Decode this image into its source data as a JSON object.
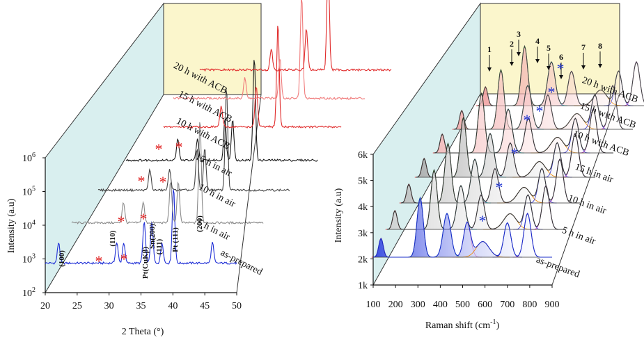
{
  "colors": {
    "back_wall": "#d9efef",
    "inset_bg": "#fbf6cc",
    "as_prepared": "#1f2fd6",
    "air": "#555555",
    "acb": "#e02a2a"
  },
  "chart_data": [
    {
      "type": "line",
      "layout": "3d-waterfall",
      "xlabel": "2 Theta (°)",
      "ylabel": "Intensity (a.u)",
      "y_scale": "log",
      "x_ticks": [
        "20",
        "25",
        "30",
        "35",
        "40",
        "45",
        "50"
      ],
      "y_ticks": [
        "10",
        "10",
        "10",
        "10",
        "10"
      ],
      "y_tick_exponents": [
        "2",
        "3",
        "4",
        "5",
        "6"
      ],
      "xlim": [
        20,
        50
      ],
      "series": [
        {
          "name": "as-prepared",
          "peaks_2theta": [
            22.1,
            31.2,
            32.3,
            35.5,
            36.7,
            38.3,
            40.1,
            46.2
          ]
        },
        {
          "name": "5 h in air",
          "peaks_2theta": [
            28.1,
            31.2,
            35.5,
            36.7,
            40.1
          ]
        },
        {
          "name": "10 h in air",
          "peaks_2theta": [
            28.1,
            31.2,
            35.5,
            36.7,
            40.1
          ]
        },
        {
          "name": "15 h in air",
          "peaks_2theta": [
            28.1,
            31.2,
            35.5,
            36.7,
            40.1
          ]
        },
        {
          "name": "10 h with ACB",
          "peaks_2theta": [
            31.2,
            36.7,
            40.1
          ]
        },
        {
          "name": "15 h with ACB",
          "peaks_2theta": [
            31.2,
            36.7,
            40.1
          ]
        },
        {
          "name": "20 h with ACB",
          "peaks_2theta": [
            31.2,
            36.7,
            40.1
          ]
        }
      ],
      "annotations": [
        "(100)",
        "(110)",
        "Sn(200)",
        "Pt(CuKβ)",
        "(111)",
        "Pt (111)",
        "(200)"
      ]
    },
    {
      "type": "line",
      "layout": "3d-waterfall",
      "xlabel": "Raman shift (cm",
      "xlabel_sup": "-1",
      "xlabel_end": ")",
      "ylabel": "Intensity (a.u)",
      "x_ticks": [
        "100",
        "200",
        "300",
        "400",
        "500",
        "600",
        "700",
        "800",
        "900"
      ],
      "y_ticks": [
        "1k",
        "2k",
        "3k",
        "4k",
        "5k",
        "6k"
      ],
      "xlim": [
        100,
        900
      ],
      "ylim": [
        1000,
        6000
      ],
      "series": [
        {
          "name": "as-prepared",
          "peaks_cm": [
            135,
            310,
            430,
            520,
            590,
            700,
            790
          ]
        },
        {
          "name": "5 h in air",
          "peaks_cm": [
            135,
            310,
            430,
            520,
            650,
            730,
            810
          ]
        },
        {
          "name": "10 h in air",
          "peaks_cm": [
            135,
            310,
            430,
            520,
            650,
            730,
            810
          ]
        },
        {
          "name": "15 h in air",
          "peaks_cm": [
            135,
            310,
            430,
            520,
            650,
            730,
            810
          ]
        },
        {
          "name": "10 h with ACB",
          "peaks_cm": [
            135,
            310,
            430,
            520,
            650,
            730,
            810
          ]
        },
        {
          "name": "15 h with ACB",
          "peaks_cm": [
            135,
            310,
            430,
            520,
            650,
            730,
            810
          ]
        },
        {
          "name": "20 h with ACB",
          "peaks_cm": [
            135,
            310,
            430,
            520,
            650,
            730,
            810
          ]
        }
      ],
      "band_numbers": [
        "1",
        "2",
        "3",
        "4",
        "5",
        "6",
        "7",
        "8"
      ]
    }
  ]
}
